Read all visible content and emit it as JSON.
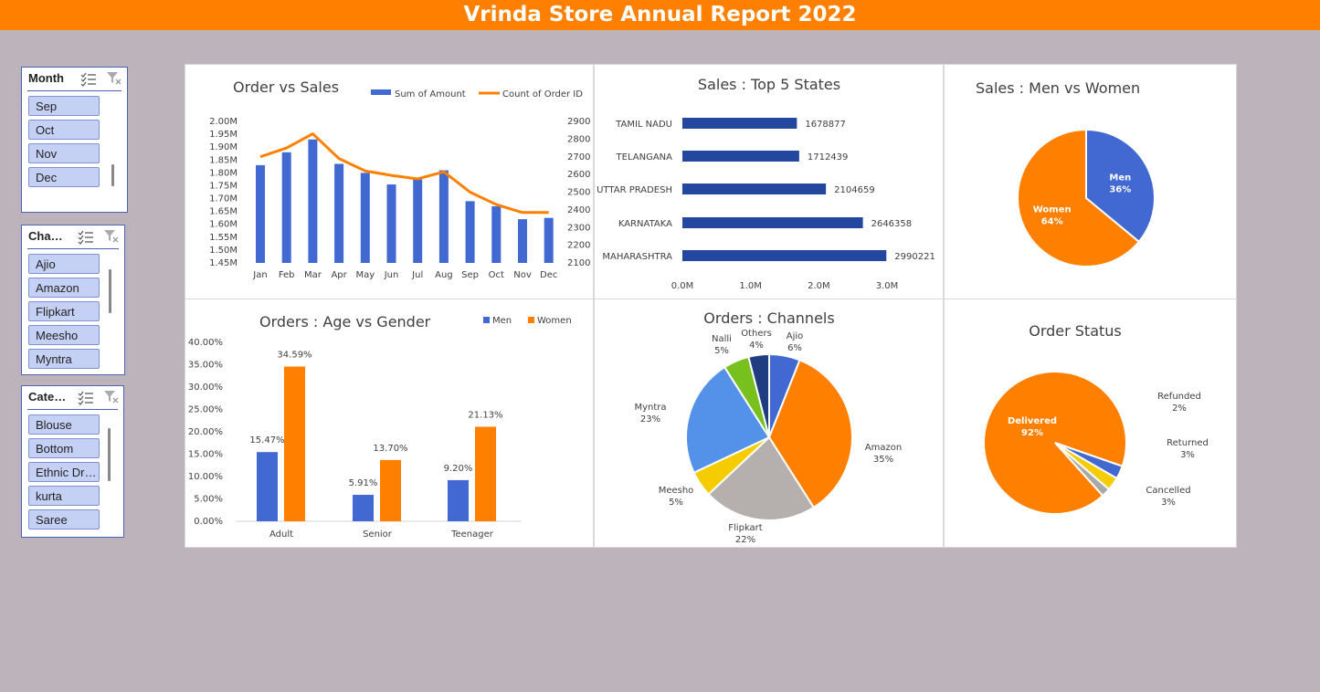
{
  "header": {
    "title": "Vrinda Store Annual Report 2022",
    "color": "#ff8000"
  },
  "slicers": [
    {
      "id": "month",
      "title": "Month",
      "items": [
        "Sep",
        "Oct",
        "Nov",
        "Dec"
      ]
    },
    {
      "id": "channel",
      "title": "Channel",
      "items": [
        "Ajio",
        "Amazon",
        "Flipkart",
        "Meesho",
        "Myntra"
      ]
    },
    {
      "id": "category",
      "title": "Category",
      "items": [
        "Blouse",
        "Bottom",
        "Ethnic Dress",
        "kurta",
        "Saree"
      ]
    }
  ],
  "icons": [
    "multi-select-icon",
    "clear-filter-icon"
  ],
  "colors": {
    "blue": "#4169d1",
    "orange": "#ff8000",
    "darkblue": "#23479e"
  },
  "chart_data": [
    {
      "id": "order-vs-sales",
      "type": "bar",
      "title": "Order vs Sales",
      "categories": [
        "Jan",
        "Feb",
        "Mar",
        "Apr",
        "May",
        "Jun",
        "Jul",
        "Aug",
        "Sep",
        "Oct",
        "Nov",
        "Dec"
      ],
      "series": [
        {
          "name": "Sum of Amount",
          "type": "bar",
          "axis": "left",
          "values": [
            1.83,
            1.88,
            1.93,
            1.835,
            1.8,
            1.755,
            1.775,
            1.81,
            1.69,
            1.67,
            1.62,
            1.625
          ]
        },
        {
          "name": "Count of Order ID",
          "type": "line",
          "axis": "right",
          "values": [
            2700,
            2750,
            2830,
            2690,
            2620,
            2595,
            2575,
            2615,
            2500,
            2430,
            2385,
            2385
          ]
        }
      ],
      "yticks_left": [
        "1.45M",
        "1.50M",
        "1.55M",
        "1.60M",
        "1.65M",
        "1.70M",
        "1.75M",
        "1.80M",
        "1.85M",
        "1.90M",
        "1.95M",
        "2.00M"
      ],
      "yticks_right": [
        "2100",
        "2200",
        "2300",
        "2400",
        "2500",
        "2600",
        "2700",
        "2800",
        "2900"
      ],
      "ylim_left": [
        1.45,
        2.0
      ],
      "ylim_right": [
        2100,
        2900
      ],
      "grid": false,
      "legend": "top-right"
    },
    {
      "id": "top-5-states",
      "type": "bar",
      "orientation": "horizontal",
      "title": "Sales : Top 5 States",
      "categories": [
        "TAMIL NADU",
        "TELANGANA",
        "UTTAR PRADESH",
        "KARNATAKA",
        "MAHARASHTRA"
      ],
      "values": [
        1678877,
        1712439,
        2104659,
        2646358,
        2990221
      ],
      "value_labels": [
        "1678877",
        "1712439",
        "2104659",
        "2646358",
        "2990221"
      ],
      "xticks": [
        "0.0M",
        "1.0M",
        "2.0M",
        "3.0M"
      ],
      "xlim": [
        0,
        3000000
      ],
      "grid": false
    },
    {
      "id": "men-vs-women",
      "type": "pie",
      "title": "Sales : Men vs Women",
      "slices": [
        {
          "name": "Men",
          "value": 36,
          "label": "36%",
          "color": "#4169d1"
        },
        {
          "name": "Women",
          "value": 64,
          "label": "64%",
          "color": "#ff8000"
        }
      ]
    },
    {
      "id": "age-vs-gender",
      "type": "bar",
      "title": "Orders : Age vs Gender",
      "categories": [
        "Adult",
        "Senior",
        "Teenager"
      ],
      "series": [
        {
          "name": "Men",
          "values": [
            15.47,
            5.91,
            9.2
          ],
          "labels": [
            "15.47%",
            "5.91%",
            "9.20%"
          ],
          "color": "#4169d1"
        },
        {
          "name": "Women",
          "values": [
            34.59,
            13.7,
            21.13
          ],
          "labels": [
            "34.59%",
            "13.70%",
            "21.13%"
          ],
          "color": "#ff8000"
        }
      ],
      "yticks": [
        "0.00%",
        "5.00%",
        "10.00%",
        "15.00%",
        "20.00%",
        "25.00%",
        "30.00%",
        "35.00%",
        "40.00%"
      ],
      "ylim": [
        0,
        40
      ],
      "legend": "top-right",
      "grid": false
    },
    {
      "id": "channels",
      "type": "pie",
      "title": "Orders : Channels",
      "slices": [
        {
          "name": "Ajio",
          "value": 6,
          "label": "6%",
          "color": "#4169d1"
        },
        {
          "name": "Amazon",
          "value": 35,
          "label": "35%",
          "color": "#ff8000"
        },
        {
          "name": "Flipkart",
          "value": 22,
          "label": "22%",
          "color": "#b5b0ae"
        },
        {
          "name": "Meesho",
          "value": 5,
          "label": "5%",
          "color": "#f5cc00"
        },
        {
          "name": "Myntra",
          "value": 23,
          "label": "23%",
          "color": "#5392e8"
        },
        {
          "name": "Nalli",
          "value": 5,
          "label": "5%",
          "color": "#78c01e"
        },
        {
          "name": "Others",
          "value": 4,
          "label": "4%",
          "color": "#1f3d80"
        }
      ]
    },
    {
      "id": "order-status",
      "type": "pie",
      "title": "Order Status",
      "slices": [
        {
          "name": "Cancelled",
          "value": 3,
          "label": "3%",
          "color": "#4169d1"
        },
        {
          "name": "Delivered",
          "value": 92,
          "label": "92%",
          "color": "#ff8000"
        },
        {
          "name": "Refunded",
          "value": 2,
          "label": "2%",
          "color": "#a9a9a9"
        },
        {
          "name": "Returned",
          "value": 3,
          "label": "3%",
          "color": "#f5cc00"
        }
      ]
    }
  ]
}
